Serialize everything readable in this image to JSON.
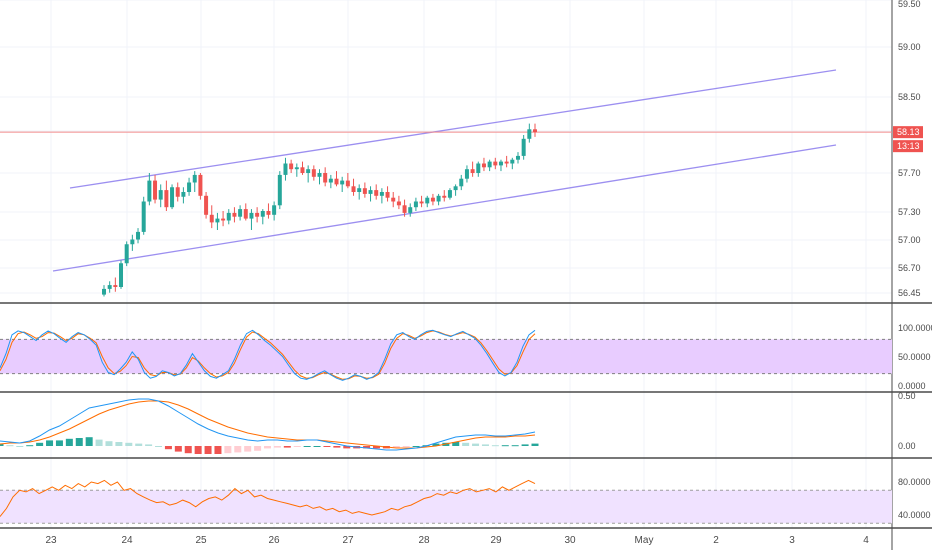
{
  "chart_data": {
    "type": "candlestick",
    "price_axis": {
      "ticks": [
        "59.50",
        "59.00",
        "58.50",
        "57.70",
        "57.30",
        "57.00",
        "56.70",
        "56.45"
      ],
      "current_price": "58.13",
      "countdown": "13:13"
    },
    "date_axis": {
      "labels": [
        "23",
        "24",
        "25",
        "26",
        "27",
        "28",
        "29",
        "30",
        "May",
        "2",
        "3",
        "4"
      ]
    },
    "candles": [
      {
        "o": 56.42,
        "h": 56.52,
        "l": 56.4,
        "c": 56.48
      },
      {
        "o": 56.48,
        "h": 56.56,
        "l": 56.44,
        "c": 56.52
      },
      {
        "o": 56.52,
        "h": 56.6,
        "l": 56.45,
        "c": 56.5
      },
      {
        "o": 56.5,
        "h": 56.78,
        "l": 56.48,
        "c": 56.75
      },
      {
        "o": 56.75,
        "h": 56.98,
        "l": 56.72,
        "c": 56.95
      },
      {
        "o": 56.95,
        "h": 57.05,
        "l": 56.88,
        "c": 57.0
      },
      {
        "o": 57.0,
        "h": 57.12,
        "l": 56.96,
        "c": 57.08
      },
      {
        "o": 57.08,
        "h": 57.45,
        "l": 57.05,
        "c": 57.4
      },
      {
        "o": 57.4,
        "h": 57.7,
        "l": 57.36,
        "c": 57.62
      },
      {
        "o": 57.62,
        "h": 57.68,
        "l": 57.38,
        "c": 57.42
      },
      {
        "o": 57.42,
        "h": 57.58,
        "l": 57.34,
        "c": 57.52
      },
      {
        "o": 57.52,
        "h": 57.62,
        "l": 57.3,
        "c": 57.34
      },
      {
        "o": 57.34,
        "h": 57.58,
        "l": 57.32,
        "c": 57.55
      },
      {
        "o": 57.55,
        "h": 57.6,
        "l": 57.4,
        "c": 57.45
      },
      {
        "o": 57.45,
        "h": 57.55,
        "l": 57.38,
        "c": 57.5
      },
      {
        "o": 57.5,
        "h": 57.65,
        "l": 57.46,
        "c": 57.6
      },
      {
        "o": 57.6,
        "h": 57.72,
        "l": 57.5,
        "c": 57.68
      },
      {
        "o": 57.68,
        "h": 57.7,
        "l": 57.42,
        "c": 57.46
      },
      {
        "o": 57.46,
        "h": 57.5,
        "l": 57.22,
        "c": 57.26
      },
      {
        "o": 57.26,
        "h": 57.36,
        "l": 57.12,
        "c": 57.18
      },
      {
        "o": 57.18,
        "h": 57.28,
        "l": 57.1,
        "c": 57.22
      },
      {
        "o": 57.22,
        "h": 57.3,
        "l": 57.14,
        "c": 57.2
      },
      {
        "o": 57.2,
        "h": 57.32,
        "l": 57.16,
        "c": 57.28
      },
      {
        "o": 57.28,
        "h": 57.34,
        "l": 57.18,
        "c": 57.24
      },
      {
        "o": 57.24,
        "h": 57.36,
        "l": 57.2,
        "c": 57.32
      },
      {
        "o": 57.32,
        "h": 57.38,
        "l": 57.2,
        "c": 57.22
      },
      {
        "o": 57.22,
        "h": 57.32,
        "l": 57.1,
        "c": 57.28
      },
      {
        "o": 57.28,
        "h": 57.34,
        "l": 57.18,
        "c": 57.24
      },
      {
        "o": 57.24,
        "h": 57.32,
        "l": 57.16,
        "c": 57.3
      },
      {
        "o": 57.3,
        "h": 57.38,
        "l": 57.22,
        "c": 57.26
      },
      {
        "o": 57.26,
        "h": 57.4,
        "l": 57.2,
        "c": 57.36
      },
      {
        "o": 57.36,
        "h": 57.72,
        "l": 57.32,
        "c": 57.68
      },
      {
        "o": 57.68,
        "h": 57.86,
        "l": 57.62,
        "c": 57.8
      },
      {
        "o": 57.8,
        "h": 57.84,
        "l": 57.7,
        "c": 57.74
      },
      {
        "o": 57.74,
        "h": 57.8,
        "l": 57.66,
        "c": 57.76
      },
      {
        "o": 57.76,
        "h": 57.82,
        "l": 57.68,
        "c": 57.7
      },
      {
        "o": 57.7,
        "h": 57.78,
        "l": 57.6,
        "c": 57.74
      },
      {
        "o": 57.74,
        "h": 57.78,
        "l": 57.62,
        "c": 57.66
      },
      {
        "o": 57.66,
        "h": 57.74,
        "l": 57.58,
        "c": 57.7
      },
      {
        "o": 57.7,
        "h": 57.76,
        "l": 57.56,
        "c": 57.6
      },
      {
        "o": 57.6,
        "h": 57.68,
        "l": 57.54,
        "c": 57.64
      },
      {
        "o": 57.64,
        "h": 57.72,
        "l": 57.56,
        "c": 57.58
      },
      {
        "o": 57.58,
        "h": 57.66,
        "l": 57.5,
        "c": 57.62
      },
      {
        "o": 57.62,
        "h": 57.7,
        "l": 57.54,
        "c": 57.56
      },
      {
        "o": 57.56,
        "h": 57.64,
        "l": 57.46,
        "c": 57.5
      },
      {
        "o": 57.5,
        "h": 57.58,
        "l": 57.42,
        "c": 57.54
      },
      {
        "o": 57.54,
        "h": 57.6,
        "l": 57.44,
        "c": 57.48
      },
      {
        "o": 57.48,
        "h": 57.56,
        "l": 57.4,
        "c": 57.52
      },
      {
        "o": 57.52,
        "h": 57.58,
        "l": 57.42,
        "c": 57.46
      },
      {
        "o": 57.46,
        "h": 57.54,
        "l": 57.38,
        "c": 57.5
      },
      {
        "o": 57.5,
        "h": 57.56,
        "l": 57.4,
        "c": 57.44
      },
      {
        "o": 57.44,
        "h": 57.5,
        "l": 57.34,
        "c": 57.4
      },
      {
        "o": 57.4,
        "h": 57.46,
        "l": 57.32,
        "c": 57.36
      },
      {
        "o": 57.36,
        "h": 57.42,
        "l": 57.24,
        "c": 57.28
      },
      {
        "o": 57.28,
        "h": 57.38,
        "l": 57.24,
        "c": 57.34
      },
      {
        "o": 57.34,
        "h": 57.44,
        "l": 57.3,
        "c": 57.4
      },
      {
        "o": 57.4,
        "h": 57.46,
        "l": 57.34,
        "c": 57.38
      },
      {
        "o": 57.38,
        "h": 57.46,
        "l": 57.34,
        "c": 57.44
      },
      {
        "o": 57.44,
        "h": 57.48,
        "l": 57.36,
        "c": 57.4
      },
      {
        "o": 57.4,
        "h": 57.48,
        "l": 57.36,
        "c": 57.46
      },
      {
        "o": 57.46,
        "h": 57.52,
        "l": 57.4,
        "c": 57.44
      },
      {
        "o": 57.44,
        "h": 57.54,
        "l": 57.42,
        "c": 57.52
      },
      {
        "o": 57.52,
        "h": 57.58,
        "l": 57.46,
        "c": 57.56
      },
      {
        "o": 57.56,
        "h": 57.68,
        "l": 57.52,
        "c": 57.64
      },
      {
        "o": 57.64,
        "h": 57.78,
        "l": 57.6,
        "c": 57.74
      },
      {
        "o": 57.74,
        "h": 57.82,
        "l": 57.66,
        "c": 57.7
      },
      {
        "o": 57.7,
        "h": 57.82,
        "l": 57.66,
        "c": 57.8
      },
      {
        "o": 57.8,
        "h": 57.86,
        "l": 57.72,
        "c": 57.76
      },
      {
        "o": 57.76,
        "h": 57.84,
        "l": 57.72,
        "c": 57.82
      },
      {
        "o": 57.82,
        "h": 57.86,
        "l": 57.74,
        "c": 57.78
      },
      {
        "o": 57.78,
        "h": 57.84,
        "l": 57.72,
        "c": 57.82
      },
      {
        "o": 57.82,
        "h": 57.88,
        "l": 57.76,
        "c": 57.8
      },
      {
        "o": 57.8,
        "h": 57.86,
        "l": 57.74,
        "c": 57.84
      },
      {
        "o": 57.84,
        "h": 57.92,
        "l": 57.8,
        "c": 57.88
      },
      {
        "o": 57.88,
        "h": 58.1,
        "l": 57.84,
        "c": 58.06
      },
      {
        "o": 58.06,
        "h": 58.22,
        "l": 58.02,
        "c": 58.16
      },
      {
        "o": 58.16,
        "h": 58.22,
        "l": 58.08,
        "c": 58.13
      }
    ],
    "stochastic": {
      "axis_ticks": [
        "100.0000",
        "50.0000",
        "0.0000"
      ],
      "band": [
        20,
        80
      ],
      "k": [
        30,
        55,
        88,
        95,
        92,
        85,
        78,
        88,
        95,
        90,
        82,
        75,
        85,
        92,
        88,
        80,
        70,
        40,
        22,
        18,
        28,
        40,
        58,
        45,
        22,
        12,
        15,
        25,
        22,
        16,
        20,
        35,
        55,
        40,
        25,
        15,
        12,
        18,
        25,
        45,
        70,
        90,
        96,
        88,
        78,
        70,
        60,
        50,
        35,
        20,
        12,
        10,
        14,
        20,
        25,
        18,
        12,
        8,
        12,
        18,
        15,
        10,
        14,
        22,
        45,
        72,
        88,
        92,
        85,
        80,
        88,
        94,
        96,
        92,
        88,
        85,
        90,
        94,
        88,
        82,
        70,
        55,
        38,
        22,
        16,
        22,
        40,
        68,
        88,
        96
      ],
      "d": [
        25,
        45,
        75,
        90,
        93,
        88,
        82,
        85,
        92,
        91,
        85,
        78,
        82,
        90,
        88,
        82,
        74,
        50,
        30,
        20,
        24,
        34,
        50,
        48,
        30,
        18,
        16,
        22,
        22,
        18,
        19,
        30,
        48,
        42,
        30,
        20,
        14,
        16,
        22,
        38,
        62,
        84,
        93,
        90,
        82,
        74,
        64,
        54,
        40,
        26,
        16,
        12,
        13,
        18,
        22,
        19,
        14,
        10,
        11,
        16,
        15,
        12,
        13,
        19,
        38,
        64,
        82,
        90,
        87,
        82,
        86,
        92,
        95,
        93,
        89,
        86,
        89,
        92,
        89,
        84,
        74,
        60,
        44,
        28,
        19,
        21,
        34,
        58,
        80,
        90
      ]
    },
    "macd": {
      "axis_ticks": [
        "0.50",
        "0.00"
      ],
      "macd_line": [
        0.05,
        0.04,
        0.03,
        0.05,
        0.1,
        0.16,
        0.2,
        0.26,
        0.32,
        0.38,
        0.4,
        0.42,
        0.44,
        0.46,
        0.47,
        0.47,
        0.45,
        0.4,
        0.34,
        0.28,
        0.22,
        0.17,
        0.13,
        0.1,
        0.08,
        0.06,
        0.05,
        0.06,
        0.06,
        0.05,
        0.05,
        0.06,
        0.06,
        0.04,
        0.02,
        0.0,
        -0.01,
        -0.02,
        -0.03,
        -0.04,
        -0.04,
        -0.03,
        -0.02,
        0.0,
        0.03,
        0.06,
        0.09,
        0.1,
        0.11,
        0.11,
        0.1,
        0.1,
        0.11,
        0.12,
        0.14
      ],
      "signal_line": [
        0.02,
        0.03,
        0.03,
        0.04,
        0.06,
        0.09,
        0.13,
        0.17,
        0.22,
        0.27,
        0.32,
        0.36,
        0.39,
        0.42,
        0.44,
        0.45,
        0.45,
        0.44,
        0.41,
        0.37,
        0.32,
        0.27,
        0.23,
        0.19,
        0.16,
        0.13,
        0.11,
        0.09,
        0.08,
        0.07,
        0.06,
        0.06,
        0.06,
        0.05,
        0.04,
        0.03,
        0.02,
        0.01,
        0.0,
        -0.01,
        -0.02,
        -0.02,
        -0.02,
        -0.01,
        0.0,
        0.02,
        0.04,
        0.06,
        0.08,
        0.09,
        0.09,
        0.09,
        0.1,
        0.1,
        0.11
      ],
      "histogram": [
        0.03,
        0.01,
        0.0,
        0.01,
        0.04,
        0.07,
        0.07,
        0.09,
        0.1,
        0.11,
        0.08,
        0.06,
        0.05,
        0.04,
        0.03,
        0.02,
        0.0,
        -0.04,
        -0.07,
        -0.09,
        -0.1,
        -0.1,
        -0.1,
        -0.09,
        -0.08,
        -0.07,
        -0.06,
        -0.03,
        -0.02,
        -0.02,
        -0.01,
        0.0,
        0.0,
        -0.01,
        -0.02,
        -0.03,
        -0.03,
        -0.03,
        -0.03,
        -0.03,
        -0.02,
        -0.01,
        0.0,
        0.01,
        0.03,
        0.04,
        0.05,
        0.04,
        0.03,
        0.02,
        0.01,
        0.01,
        0.01,
        0.02,
        0.03
      ]
    },
    "rsi": {
      "axis_ticks": [
        "80.0000",
        "40.0000"
      ],
      "band": [
        30,
        70
      ],
      "values": [
        38,
        48,
        62,
        70,
        68,
        72,
        66,
        70,
        74,
        70,
        76,
        72,
        78,
        74,
        80,
        78,
        82,
        76,
        80,
        70,
        72,
        66,
        62,
        58,
        55,
        56,
        52,
        54,
        58,
        55,
        50,
        56,
        60,
        62,
        58,
        64,
        72,
        66,
        70,
        62,
        64,
        60,
        58,
        56,
        54,
        52,
        50,
        52,
        48,
        50,
        46,
        48,
        44,
        46,
        42,
        44,
        42,
        40,
        42,
        44,
        48,
        46,
        50,
        52,
        56,
        60,
        62,
        66,
        64,
        68,
        66,
        70,
        72,
        68,
        70,
        72,
        68,
        74,
        70,
        74,
        78,
        82,
        78
      ]
    }
  }
}
